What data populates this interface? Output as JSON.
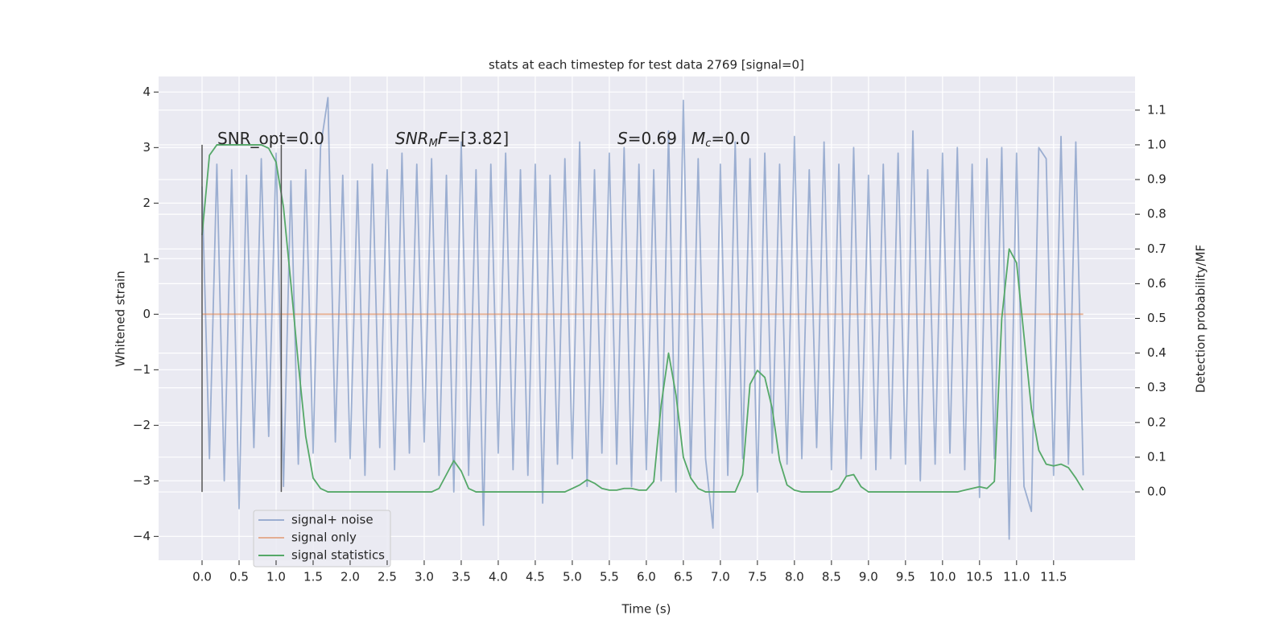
{
  "chart_data": {
    "type": "line",
    "title": "stats at each timestep for test data 2769 [signal=0]",
    "x_label": "Time (s)",
    "y_label": "Whitened strain",
    "y2_label": "Detection probability/MF",
    "annotations": [
      [
        "SNR_opt=0.0"
      ],
      [
        "SNR",
        "M",
        "F",
        "=[3.82]"
      ],
      [
        "S",
        "=0.69"
      ],
      [
        "M",
        "c",
        "=0.0"
      ]
    ],
    "xlim": [
      -0.587,
      12.6
    ],
    "ylim": [
      -4.43,
      4.28
    ],
    "y2lim": [
      -0.197,
      1.197
    ],
    "xticks": [
      {
        "value": 0,
        "label": "0.0"
      },
      0.5,
      {
        "value": 1,
        "label": "1.0"
      },
      1.5,
      {
        "value": 2,
        "label": "2.0"
      },
      2.5,
      {
        "value": 3,
        "label": "3.0"
      },
      3.5,
      {
        "value": 4,
        "label": "4.0"
      },
      4.5,
      {
        "value": 5,
        "label": "5.0"
      },
      5.5,
      {
        "value": 6,
        "label": "6.0"
      },
      6.5,
      {
        "value": 7,
        "label": "7.0"
      },
      7.5,
      {
        "value": 8,
        "label": "8.0"
      },
      8.5,
      {
        "value": 9,
        "label": "9.0"
      },
      9.5,
      {
        "value": 10,
        "label": "10.0"
      },
      10.5,
      {
        "value": 11,
        "label": "11.0"
      },
      11.5
    ],
    "yticks": [
      {
        "value": -4,
        "label": "−4"
      },
      {
        "value": -3,
        "label": "−3"
      },
      {
        "value": -2,
        "label": "−2"
      },
      {
        "value": -1,
        "label": "−1"
      },
      0,
      1,
      2,
      3,
      4
    ],
    "y2ticks": [
      {
        "value": 0,
        "label": "0.0"
      },
      0.1,
      0.2,
      0.3,
      0.4,
      0.5,
      0.6,
      0.7,
      0.8,
      0.9,
      {
        "value": 1,
        "label": "1.0"
      },
      1.1
    ],
    "grid": true,
    "legend": "lower left",
    "vlines": {
      "x": [
        0,
        1.07
      ],
      "ymin": -3.2,
      "ymax": 3.05,
      "color": "#555555"
    },
    "x": [
      0,
      0.1,
      0.2,
      0.3,
      0.4,
      0.5,
      0.6,
      0.7,
      0.8,
      0.9,
      1,
      1.1,
      1.2,
      1.3,
      1.4,
      1.5,
      1.6,
      1.7,
      1.8,
      1.9,
      2,
      2.1,
      2.2,
      2.3,
      2.4,
      2.5,
      2.6,
      2.7,
      2.8,
      2.9,
      3,
      3.1,
      3.2,
      3.3,
      3.4,
      3.5,
      3.6,
      3.7,
      3.8,
      3.9,
      4,
      4.1,
      4.2,
      4.3,
      4.4,
      4.5,
      4.6,
      4.7,
      4.8,
      4.9,
      5,
      5.1,
      5.2,
      5.3,
      5.4,
      5.5,
      5.6,
      5.7,
      5.8,
      5.9,
      6,
      6.1,
      6.2,
      6.3,
      6.4,
      6.5,
      6.6,
      6.7,
      6.8,
      6.9,
      7,
      7.1,
      7.2,
      7.3,
      7.4,
      7.5,
      7.6,
      7.7,
      7.8,
      7.9,
      8,
      8.1,
      8.2,
      8.3,
      8.4,
      8.5,
      8.6,
      8.7,
      8.8,
      8.9,
      9,
      9.1,
      9.2,
      9.3,
      9.4,
      9.5,
      9.6,
      9.7,
      9.8,
      9.9,
      10,
      10.1,
      10.2,
      10.3,
      10.4,
      10.5,
      10.6,
      10.7,
      10.8,
      10.9,
      11,
      11.1,
      11.2,
      11.3,
      11.4,
      11.5,
      11.6,
      11.7,
      11.8,
      11.9
    ],
    "series": [
      {
        "name": "signal+ noise",
        "color": "#4c72b0",
        "alpha": 0.5,
        "axis": "y",
        "values": [
          2.3,
          -2.6,
          2.7,
          -3.0,
          2.6,
          -3.5,
          2.5,
          -2.4,
          2.8,
          -2.2,
          2.9,
          -3.1,
          2.4,
          -2.7,
          2.6,
          -2.5,
          3.0,
          3.9,
          -2.3,
          2.5,
          -2.6,
          2.4,
          -2.9,
          2.7,
          -2.4,
          2.6,
          -2.8,
          2.9,
          -2.5,
          2.7,
          -2.3,
          2.8,
          -2.9,
          2.5,
          -3.2,
          3.1,
          -2.9,
          2.6,
          -3.8,
          2.7,
          -2.5,
          2.9,
          -2.8,
          2.6,
          -2.9,
          2.7,
          -3.4,
          2.5,
          -2.7,
          2.8,
          -2.6,
          3.1,
          -3.1,
          2.6,
          -2.5,
          2.9,
          -2.7,
          3.0,
          -3.1,
          2.7,
          -2.8,
          2.6,
          -3.0,
          3.3,
          -3.2,
          3.85,
          -2.9,
          2.8,
          -2.6,
          -3.85,
          2.7,
          -2.9,
          3.1,
          -2.6,
          2.8,
          -3.2,
          2.9,
          -2.5,
          2.7,
          -2.7,
          3.2,
          -2.6,
          2.6,
          -2.4,
          3.1,
          -2.8,
          2.7,
          -2.9,
          3.0,
          -2.6,
          2.5,
          -2.8,
          2.7,
          -2.6,
          2.9,
          -2.7,
          3.3,
          -3.0,
          2.6,
          -2.7,
          2.9,
          -2.5,
          3.0,
          -2.8,
          2.7,
          -3.3,
          2.8,
          -2.6,
          3.0,
          -4.05,
          2.9,
          -3.1,
          -3.55,
          3.0,
          2.8,
          -2.9,
          3.2,
          -2.7,
          3.1,
          -2.9
        ]
      },
      {
        "name": "signal only",
        "color": "#dd8452",
        "alpha": 0.6,
        "axis": "y",
        "values": [
          0,
          0,
          0,
          0,
          0,
          0,
          0,
          0,
          0,
          0,
          0,
          0,
          0,
          0,
          0,
          0,
          0,
          0,
          0,
          0,
          0,
          0,
          0,
          0,
          0,
          0,
          0,
          0,
          0,
          0,
          0,
          0,
          0,
          0,
          0,
          0,
          0,
          0,
          0,
          0,
          0,
          0,
          0,
          0,
          0,
          0,
          0,
          0,
          0,
          0,
          0,
          0,
          0,
          0,
          0,
          0,
          0,
          0,
          0,
          0,
          0,
          0,
          0,
          0,
          0,
          0,
          0,
          0,
          0,
          0,
          0,
          0,
          0,
          0,
          0,
          0,
          0,
          0,
          0,
          0,
          0,
          0,
          0,
          0,
          0,
          0,
          0,
          0,
          0,
          0,
          0,
          0,
          0,
          0,
          0,
          0,
          0,
          0,
          0,
          0,
          0,
          0,
          0,
          0,
          0,
          0,
          0,
          0,
          0,
          0,
          0,
          0,
          0,
          0,
          0,
          0,
          0,
          0,
          0,
          0
        ]
      },
      {
        "name": "signal statistics",
        "color": "#55a868",
        "alpha": 1,
        "axis": "y2",
        "values": [
          0.74,
          0.97,
          1.0,
          1.0,
          1.0,
          1.0,
          1.0,
          1.0,
          1.0,
          0.99,
          0.95,
          0.82,
          0.6,
          0.37,
          0.16,
          0.04,
          0.01,
          0,
          0,
          0,
          0,
          0,
          0,
          0,
          0,
          0,
          0,
          0,
          0,
          0,
          0,
          0,
          0.01,
          0.05,
          0.09,
          0.06,
          0.01,
          0,
          0,
          0,
          0,
          0,
          0,
          0,
          0,
          0,
          0,
          0,
          0,
          0,
          0.01,
          0.02,
          0.035,
          0.025,
          0.01,
          0.005,
          0.005,
          0.01,
          0.01,
          0.005,
          0.005,
          0.03,
          0.25,
          0.4,
          0.28,
          0.1,
          0.04,
          0.01,
          0,
          0,
          0,
          0,
          0,
          0.05,
          0.31,
          0.35,
          0.33,
          0.24,
          0.09,
          0.02,
          0.005,
          0,
          0,
          0,
          0,
          0,
          0.01,
          0.045,
          0.05,
          0.015,
          0,
          0,
          0,
          0,
          0,
          0,
          0,
          0,
          0,
          0,
          0,
          0,
          0,
          0.005,
          0.01,
          0.015,
          0.01,
          0.03,
          0.5,
          0.7,
          0.66,
          0.45,
          0.24,
          0.12,
          0.08,
          0.075,
          0.08,
          0.07,
          0.04,
          0.005
        ]
      }
    ]
  }
}
